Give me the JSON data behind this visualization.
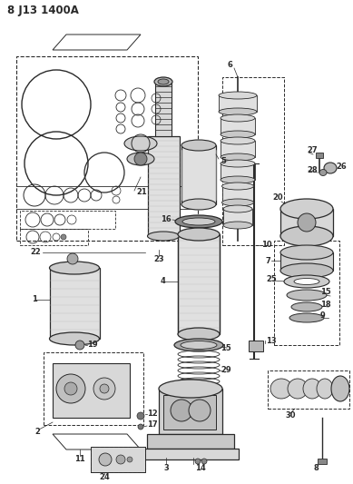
{
  "title": "8 J13 1400A",
  "bg_color": "#ffffff",
  "line_color": "#2a2a2a",
  "fig_width": 3.89,
  "fig_height": 5.33,
  "dpi": 100
}
